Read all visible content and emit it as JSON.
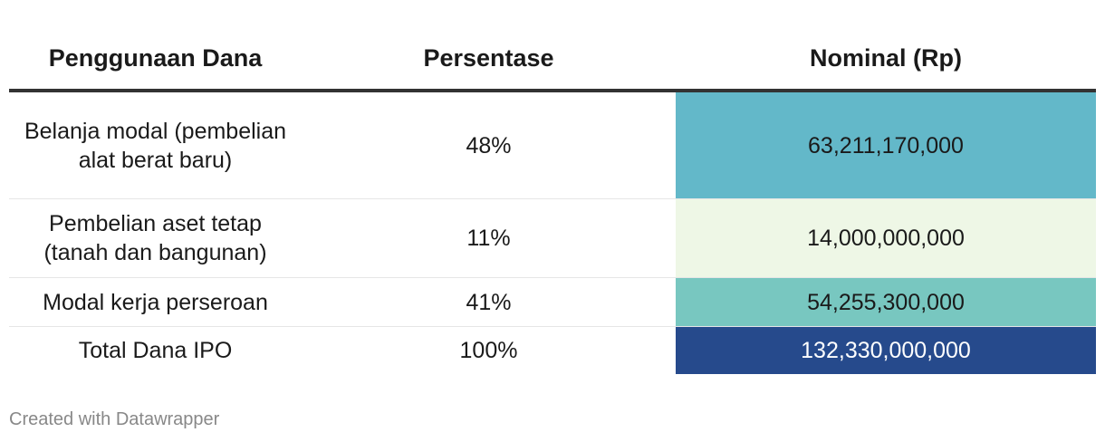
{
  "chart_data": {
    "type": "table",
    "columns": [
      "Penggunaan Dana",
      "Persentase",
      "Nominal (Rp)"
    ],
    "rows": [
      {
        "label": "Belanja modal (pembelian alat berat baru)",
        "percent": "48%",
        "nominal": "63,211,170,000",
        "nominal_value": 63211170000,
        "color": "#63b8c9",
        "text_color": "#1a1a1a"
      },
      {
        "label": "Pembelian aset tetap (tanah dan bangunan)",
        "percent": "11%",
        "nominal": "14,000,000,000",
        "nominal_value": 14000000000,
        "color": "#eef7e6",
        "text_color": "#1a1a1a"
      },
      {
        "label": "Modal kerja perseroan",
        "percent": "41%",
        "nominal": "54,255,300,000",
        "nominal_value": 54255300000,
        "color": "#78c7c0",
        "text_color": "#1a1a1a"
      },
      {
        "label": "Total Dana IPO",
        "percent": "100%",
        "nominal": "132,330,000,000",
        "nominal_value": 132330000000,
        "color": "#264a8c",
        "text_color": "#ffffff"
      }
    ]
  },
  "footer": {
    "credit": "Created with Datawrapper"
  }
}
